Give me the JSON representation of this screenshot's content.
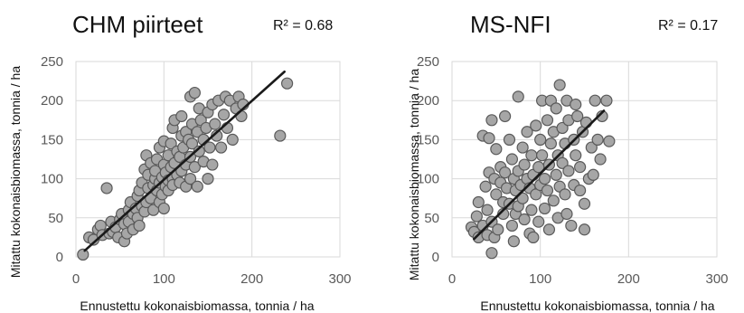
{
  "chart_data": [
    {
      "type": "scatter",
      "title": "CHM piirteet",
      "annotation": "R² = 0.68",
      "xlabel": "Ennustettu kokonaisbiomassa, tonnia / ha",
      "ylabel": "Mitattu kokonaisbiomassa, tonnia / ha",
      "xlim": [
        0,
        300
      ],
      "ylim": [
        0,
        250
      ],
      "xticks": [
        "0",
        "100",
        "200",
        "300"
      ],
      "yticks": [
        "0",
        "50",
        "100",
        "150",
        "200",
        "250"
      ],
      "grid": true,
      "trendline": [
        [
          10,
          8
        ],
        [
          237,
          237
        ]
      ],
      "points": [
        [
          8,
          3
        ],
        [
          15,
          25
        ],
        [
          20,
          22
        ],
        [
          25,
          35
        ],
        [
          28,
          40
        ],
        [
          30,
          28
        ],
        [
          35,
          88
        ],
        [
          38,
          30
        ],
        [
          40,
          45
        ],
        [
          42,
          32
        ],
        [
          45,
          38
        ],
        [
          48,
          25
        ],
        [
          50,
          48
        ],
        [
          52,
          55
        ],
        [
          55,
          20
        ],
        [
          55,
          42
        ],
        [
          58,
          30
        ],
        [
          60,
          60
        ],
        [
          60,
          45
        ],
        [
          62,
          70
        ],
        [
          65,
          35
        ],
        [
          65,
          55
        ],
        [
          68,
          62
        ],
        [
          70,
          50
        ],
        [
          70,
          78
        ],
        [
          72,
          40
        ],
        [
          72,
          85
        ],
        [
          75,
          65
        ],
        [
          75,
          95
        ],
        [
          78,
          58
        ],
        [
          78,
          112
        ],
        [
          80,
          130
        ],
        [
          80,
          70
        ],
        [
          82,
          88
        ],
        [
          82,
          105
        ],
        [
          85,
          75
        ],
        [
          85,
          120
        ],
        [
          88,
          92
        ],
        [
          88,
          60
        ],
        [
          90,
          100
        ],
        [
          90,
          110
        ],
        [
          92,
          85
        ],
        [
          92,
          125
        ],
        [
          95,
          95
        ],
        [
          95,
          70
        ],
        [
          95,
          140
        ],
        [
          98,
          102
        ],
        [
          98,
          80
        ],
        [
          100,
          118
        ],
        [
          100,
          62
        ],
        [
          100,
          148
        ],
        [
          102,
          90
        ],
        [
          102,
          108
        ],
        [
          105,
          98
        ],
        [
          105,
          130
        ],
        [
          105,
          85
        ],
        [
          108,
          115
        ],
        [
          108,
          145
        ],
        [
          110,
          100
        ],
        [
          110,
          92
        ],
        [
          110,
          165
        ],
        [
          112,
          175
        ],
        [
          112,
          120
        ],
        [
          115,
          105
        ],
        [
          115,
          135
        ],
        [
          118,
          128
        ],
        [
          118,
          95
        ],
        [
          120,
          155
        ],
        [
          120,
          110
        ],
        [
          120,
          180
        ],
        [
          122,
          140
        ],
        [
          125,
          118
        ],
        [
          125,
          160
        ],
        [
          125,
          90
        ],
        [
          128,
          150
        ],
        [
          130,
          128
        ],
        [
          130,
          100
        ],
        [
          130,
          205
        ],
        [
          132,
          145
        ],
        [
          132,
          170
        ],
        [
          135,
          210
        ],
        [
          135,
          115
        ],
        [
          138,
          160
        ],
        [
          138,
          90
        ],
        [
          140,
          135
        ],
        [
          140,
          190
        ],
        [
          142,
          175
        ],
        [
          145,
          122
        ],
        [
          145,
          150
        ],
        [
          148,
          165
        ],
        [
          150,
          100
        ],
        [
          150,
          185
        ],
        [
          152,
          140
        ],
        [
          155,
          195
        ],
        [
          155,
          118
        ],
        [
          158,
          170
        ],
        [
          160,
          155
        ],
        [
          162,
          200
        ],
        [
          165,
          140
        ],
        [
          168,
          182
        ],
        [
          170,
          205
        ],
        [
          172,
          165
        ],
        [
          175,
          200
        ],
        [
          178,
          150
        ],
        [
          182,
          190
        ],
        [
          185,
          205
        ],
        [
          188,
          180
        ],
        [
          190,
          195
        ],
        [
          232,
          155
        ],
        [
          240,
          222
        ]
      ]
    },
    {
      "type": "scatter",
      "title": "MS-NFI",
      "annotation": "R² = 0.17",
      "xlabel": "Ennustettu kokonaisbiomassa, tonnia / ha",
      "ylabel": "Mitattu kokonaisbiomassa, tonnia / ha",
      "xlim": [
        0,
        300
      ],
      "ylim": [
        0,
        250
      ],
      "xticks": [
        "0",
        "100",
        "200",
        "300"
      ],
      "yticks": [
        "0",
        "50",
        "100",
        "150",
        "200",
        "250"
      ],
      "grid": true,
      "trendline": [
        [
          25,
          23
        ],
        [
          172,
          187
        ]
      ],
      "points": [
        [
          22,
          38
        ],
        [
          25,
          32
        ],
        [
          28,
          52
        ],
        [
          30,
          70
        ],
        [
          30,
          25
        ],
        [
          35,
          155
        ],
        [
          35,
          40
        ],
        [
          38,
          90
        ],
        [
          40,
          28
        ],
        [
          40,
          60
        ],
        [
          42,
          108
        ],
        [
          42,
          152
        ],
        [
          45,
          175
        ],
        [
          45,
          45
        ],
        [
          45,
          5
        ],
        [
          48,
          25
        ],
        [
          48,
          100
        ],
        [
          50,
          80
        ],
        [
          50,
          138
        ],
        [
          52,
          35
        ],
        [
          55,
          95
        ],
        [
          55,
          115
        ],
        [
          58,
          70
        ],
        [
          58,
          55
        ],
        [
          60,
          108
        ],
        [
          60,
          180
        ],
        [
          62,
          88
        ],
        [
          65,
          150
        ],
        [
          65,
          68
        ],
        [
          68,
          40
        ],
        [
          68,
          125
        ],
        [
          70,
          100
        ],
        [
          70,
          20
        ],
        [
          72,
          85
        ],
        [
          72,
          55
        ],
        [
          75,
          205
        ],
        [
          75,
          110
        ],
        [
          75,
          65
        ],
        [
          78,
          92
        ],
        [
          80,
          140
        ],
        [
          80,
          75
        ],
        [
          82,
          118
        ],
        [
          82,
          48
        ],
        [
          85,
          100
        ],
        [
          85,
          160
        ],
        [
          88,
          30
        ],
        [
          88,
          88
        ],
        [
          90,
          130
        ],
        [
          90,
          60
        ],
        [
          92,
          105
        ],
        [
          92,
          25
        ],
        [
          95,
          168
        ],
        [
          95,
          80
        ],
        [
          98,
          115
        ],
        [
          98,
          45
        ],
        [
          100,
          92
        ],
        [
          100,
          150
        ],
        [
          102,
          130
        ],
        [
          102,
          200
        ],
        [
          105,
          62
        ],
        [
          105,
          100
        ],
        [
          108,
          175
        ],
        [
          108,
          85
        ],
        [
          110,
          118
        ],
        [
          110,
          35
        ],
        [
          112,
          145
        ],
        [
          112,
          200
        ],
        [
          115,
          72
        ],
        [
          115,
          160
        ],
        [
          118,
          190
        ],
        [
          118,
          105
        ],
        [
          120,
          130
        ],
        [
          120,
          50
        ],
        [
          122,
          220
        ],
        [
          122,
          90
        ],
        [
          125,
          165
        ],
        [
          125,
          120
        ],
        [
          128,
          80
        ],
        [
          128,
          145
        ],
        [
          130,
          200
        ],
        [
          130,
          55
        ],
        [
          132,
          110
        ],
        [
          132,
          175
        ],
        [
          135,
          40
        ],
        [
          138,
          150
        ],
        [
          138,
          92
        ],
        [
          140,
          130
        ],
        [
          140,
          195
        ],
        [
          142,
          180
        ],
        [
          145,
          85
        ],
        [
          145,
          115
        ],
        [
          148,
          160
        ],
        [
          150,
          68
        ],
        [
          150,
          35
        ],
        [
          152,
          172
        ],
        [
          155,
          100
        ],
        [
          158,
          140
        ],
        [
          160,
          105
        ],
        [
          162,
          200
        ],
        [
          165,
          150
        ],
        [
          168,
          125
        ],
        [
          170,
          180
        ],
        [
          175,
          200
        ],
        [
          178,
          148
        ]
      ]
    }
  ]
}
